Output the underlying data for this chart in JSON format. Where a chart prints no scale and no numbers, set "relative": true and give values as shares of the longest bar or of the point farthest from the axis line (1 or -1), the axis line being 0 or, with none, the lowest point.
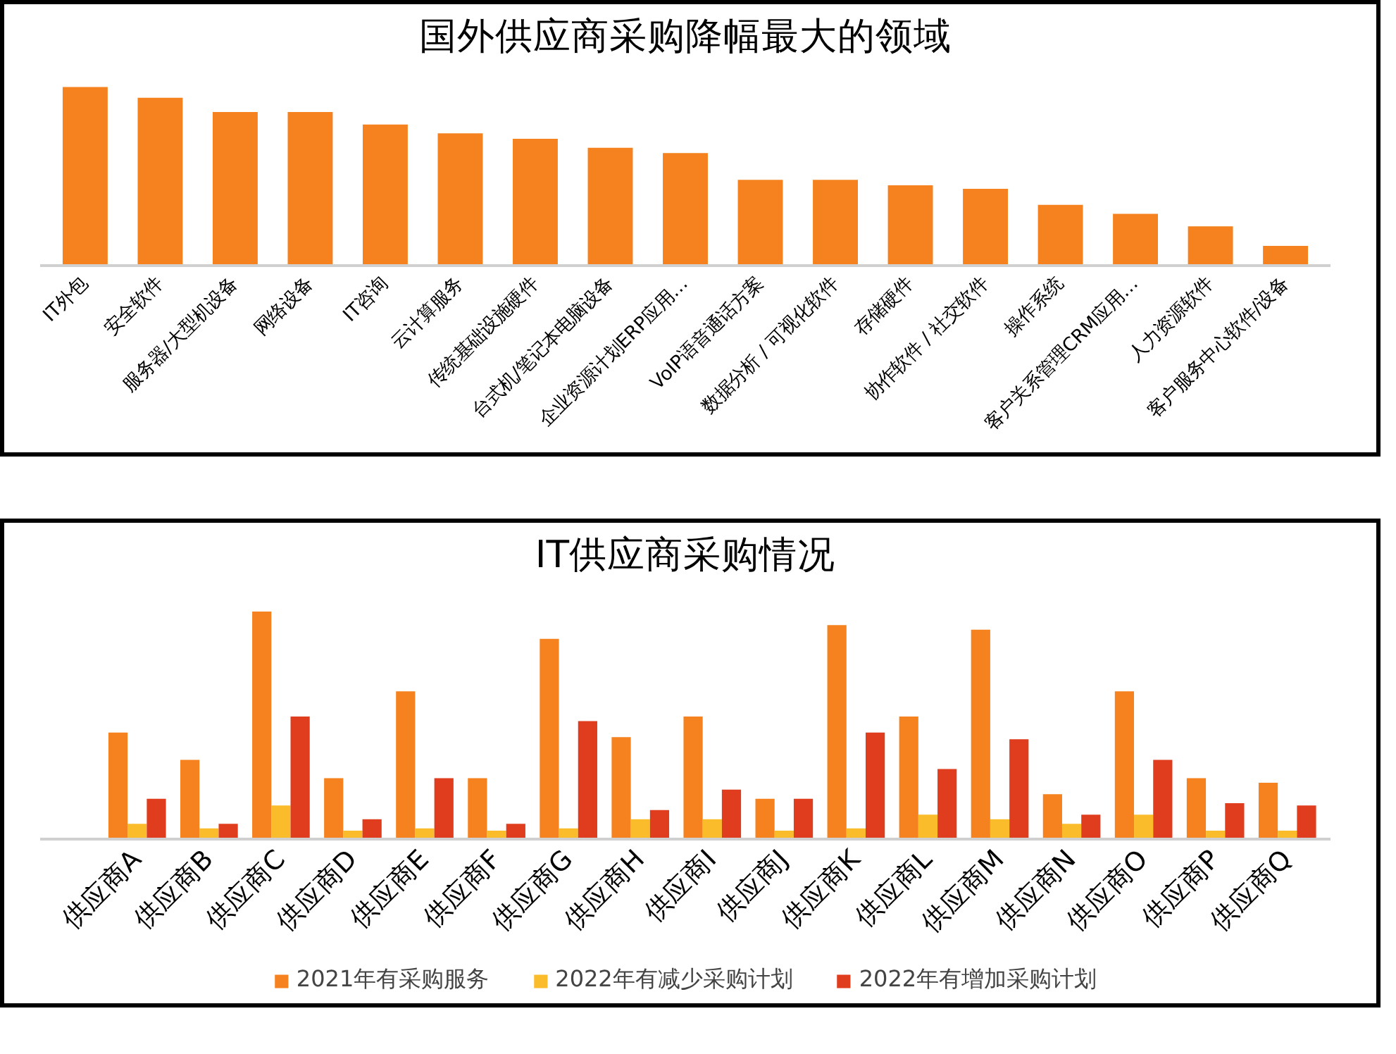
{
  "chart_data": [
    {
      "type": "bar",
      "title": "国外供应商采购降幅最大的领域",
      "relative": true,
      "color": "#f5821f",
      "categories": [
        "IT外包",
        "安全软件",
        "服务器/大型机设备",
        "网络设备",
        "IT咨询",
        "云计算服务",
        "传统基础设施硬件",
        "台式机/笔记本电脑设备",
        "企业资源计划ERP应用…",
        "VoIP语音通话方案",
        "数据分析 / 可视化软件",
        "存储硬件",
        "协作软件 / 社交软件",
        "操作系统",
        "客户关系管理CRM应用…",
        "人力资源软件",
        "客户服务中心软件/设备"
      ],
      "values": [
        1,
        0.94,
        0.86,
        0.86,
        0.79,
        0.74,
        0.71,
        0.66,
        0.63,
        0.48,
        0.48,
        0.45,
        0.43,
        0.34,
        0.29,
        0.22,
        0.11
      ]
    },
    {
      "type": "bar",
      "title": "IT供应商采购情况",
      "relative": true,
      "legend": "bottom",
      "categories": [
        "供应商A",
        "供应商B",
        "供应商C",
        "供应商D",
        "供应商E",
        "供应商F",
        "供应商G",
        "供应商H",
        "供应商I",
        "供应商J",
        "供应商K",
        "供应商L",
        "供应商M",
        "供应商N",
        "供应商O",
        "供应商P",
        "供应商Q"
      ],
      "series": [
        {
          "name": "2021年有采购服务",
          "color": "#f5821f",
          "values": [
            0.47,
            0.35,
            1,
            0.27,
            0.65,
            0.27,
            0.88,
            0.45,
            0.54,
            0.18,
            0.94,
            0.54,
            0.92,
            0.2,
            0.65,
            0.27,
            0.25
          ]
        },
        {
          "name": "2022年有减少采购计划",
          "color": "#fbbc2c",
          "values": [
            0.07,
            0.05,
            0.15,
            0.04,
            0.05,
            0.04,
            0.05,
            0.09,
            0.09,
            0.04,
            0.05,
            0.11,
            0.09,
            0.07,
            0.11,
            0.04,
            0.04
          ]
        },
        {
          "name": "2022年有增加采购计划",
          "color": "#e03c1e",
          "values": [
            0.18,
            0.07,
            0.54,
            0.09,
            0.27,
            0.07,
            0.52,
            0.13,
            0.22,
            0.18,
            0.47,
            0.31,
            0.44,
            0.11,
            0.35,
            0.16,
            0.15
          ]
        }
      ]
    }
  ]
}
